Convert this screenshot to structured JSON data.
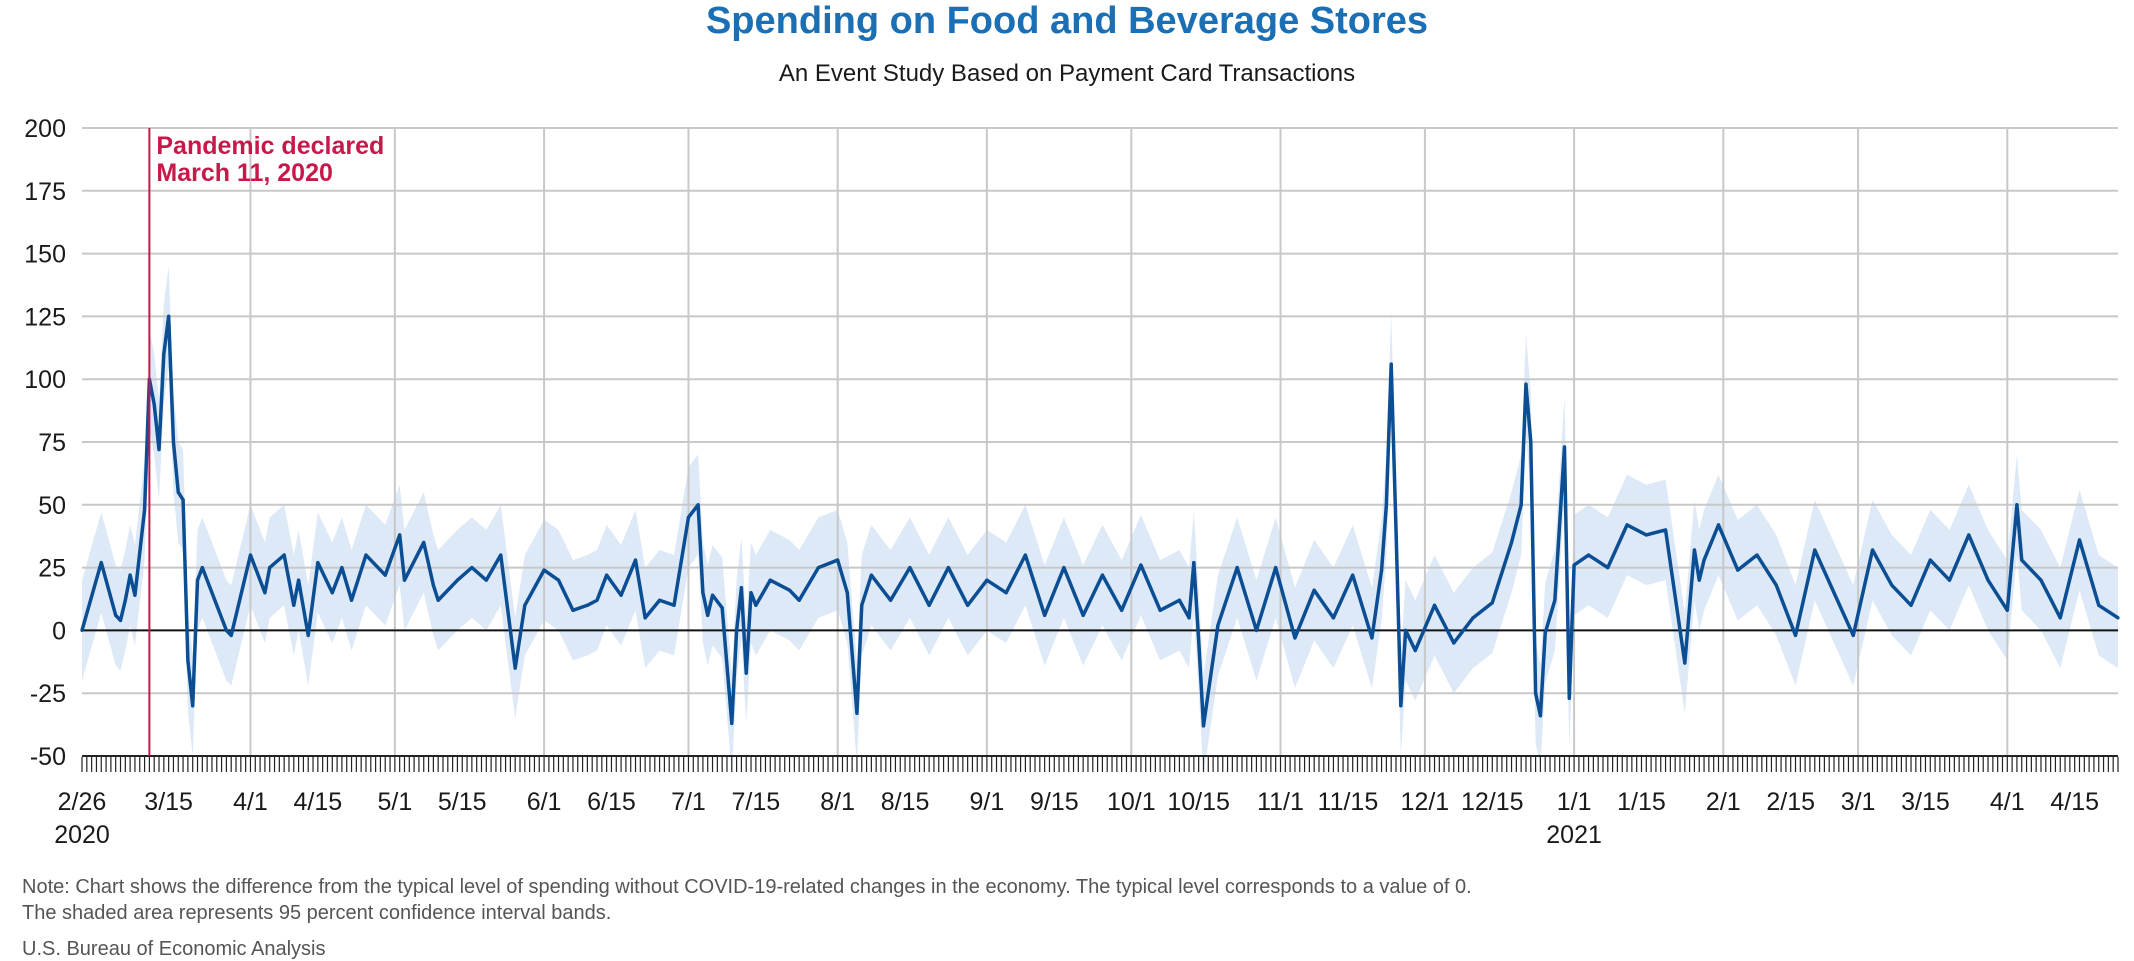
{
  "page": {
    "title": "Spending on Food and Beverage Stores",
    "subtitle": "An Event Study Based on Payment Card Transactions",
    "note_line1": "Note: Chart shows the difference from the typical level of spending without COVID-19-related changes in the economy. The typical level corresponds to a value of 0.",
    "note_line2": "The shaded area represents 95 percent confidence interval bands.",
    "source": "U.S. Bureau of Economic Analysis"
  },
  "colors": {
    "title": "#1a6fb5",
    "line": "#0b4e94",
    "band": "#dde9f7",
    "event": "#c8184a",
    "grid": "#c8c8c8"
  },
  "chart_data": {
    "type": "line",
    "ylim": [
      -50,
      200
    ],
    "yticks": [
      -50,
      -25,
      0,
      25,
      50,
      75,
      100,
      125,
      150,
      175,
      200
    ],
    "grid": true,
    "xlim": [
      "2020-02-26",
      "2021-04-24"
    ],
    "xtick_labels": [
      {
        "date": "2020-02-26",
        "label": "2/26",
        "sublabel": "2020"
      },
      {
        "date": "2020-03-15",
        "label": "3/15"
      },
      {
        "date": "2020-04-01",
        "label": "4/1"
      },
      {
        "date": "2020-04-15",
        "label": "4/15"
      },
      {
        "date": "2020-05-01",
        "label": "5/1"
      },
      {
        "date": "2020-05-15",
        "label": "5/15"
      },
      {
        "date": "2020-06-01",
        "label": "6/1"
      },
      {
        "date": "2020-06-15",
        "label": "6/15"
      },
      {
        "date": "2020-07-01",
        "label": "7/1"
      },
      {
        "date": "2020-07-15",
        "label": "7/15"
      },
      {
        "date": "2020-08-01",
        "label": "8/1"
      },
      {
        "date": "2020-08-15",
        "label": "8/15"
      },
      {
        "date": "2020-09-01",
        "label": "9/1"
      },
      {
        "date": "2020-09-15",
        "label": "9/15"
      },
      {
        "date": "2020-10-01",
        "label": "10/1"
      },
      {
        "date": "2020-10-15",
        "label": "10/15"
      },
      {
        "date": "2020-11-01",
        "label": "11/1"
      },
      {
        "date": "2020-11-15",
        "label": "11/15"
      },
      {
        "date": "2020-12-01",
        "label": "12/1"
      },
      {
        "date": "2020-12-15",
        "label": "12/15"
      },
      {
        "date": "2021-01-01",
        "label": "1/1",
        "sublabel": "2021"
      },
      {
        "date": "2021-01-15",
        "label": "1/15"
      },
      {
        "date": "2021-02-01",
        "label": "2/1"
      },
      {
        "date": "2021-02-15",
        "label": "2/15"
      },
      {
        "date": "2021-03-01",
        "label": "3/1"
      },
      {
        "date": "2021-03-15",
        "label": "3/15"
      },
      {
        "date": "2021-04-01",
        "label": "4/1"
      },
      {
        "date": "2021-04-15",
        "label": "4/15"
      }
    ],
    "event": {
      "date": "2020-03-11",
      "label_line1": "Pandemic declared",
      "label_line2": "March 11, 2020"
    },
    "band_halfwidth": 20,
    "series": [
      {
        "x": [
          "2020-02-26",
          "2020-03-01",
          "2020-03-04",
          "2020-03-05",
          "2020-03-06",
          "2020-03-07",
          "2020-03-08",
          "2020-03-10",
          "2020-03-11",
          "2020-03-12",
          "2020-03-13",
          "2020-03-14",
          "2020-03-15",
          "2020-03-16",
          "2020-03-17",
          "2020-03-18",
          "2020-03-19",
          "2020-03-20",
          "2020-03-21",
          "2020-03-22",
          "2020-03-25",
          "2020-03-27",
          "2020-03-28",
          "2020-04-01",
          "2020-04-04",
          "2020-04-05",
          "2020-04-08",
          "2020-04-10",
          "2020-04-11",
          "2020-04-13",
          "2020-04-15",
          "2020-04-18",
          "2020-04-20",
          "2020-04-22",
          "2020-04-25",
          "2020-04-29",
          "2020-05-02",
          "2020-05-03",
          "2020-05-07",
          "2020-05-09",
          "2020-05-10",
          "2020-05-14",
          "2020-05-17",
          "2020-05-20",
          "2020-05-23",
          "2020-05-24",
          "2020-05-26",
          "2020-05-28",
          "2020-06-01",
          "2020-06-04",
          "2020-06-07",
          "2020-06-10",
          "2020-06-12",
          "2020-06-14",
          "2020-06-17",
          "2020-06-20",
          "2020-06-22",
          "2020-06-25",
          "2020-06-28",
          "2020-07-01",
          "2020-07-03",
          "2020-07-04",
          "2020-07-05",
          "2020-07-06",
          "2020-07-08",
          "2020-07-10",
          "2020-07-11",
          "2020-07-12",
          "2020-07-13",
          "2020-07-14",
          "2020-07-15",
          "2020-07-18",
          "2020-07-22",
          "2020-07-24",
          "2020-07-28",
          "2020-08-01",
          "2020-08-03",
          "2020-08-05",
          "2020-08-06",
          "2020-08-08",
          "2020-08-12",
          "2020-08-16",
          "2020-08-20",
          "2020-08-24",
          "2020-08-28",
          "2020-09-01",
          "2020-09-05",
          "2020-09-09",
          "2020-09-13",
          "2020-09-17",
          "2020-09-21",
          "2020-09-25",
          "2020-09-29",
          "2020-10-03",
          "2020-10-07",
          "2020-10-11",
          "2020-10-13",
          "2020-10-14",
          "2020-10-15",
          "2020-10-16",
          "2020-10-19",
          "2020-10-23",
          "2020-10-27",
          "2020-10-31",
          "2020-11-04",
          "2020-11-08",
          "2020-11-12",
          "2020-11-16",
          "2020-11-20",
          "2020-11-22",
          "2020-11-23",
          "2020-11-24",
          "2020-11-25",
          "2020-11-26",
          "2020-11-27",
          "2020-11-29",
          "2020-12-03",
          "2020-12-07",
          "2020-12-11",
          "2020-12-15",
          "2020-12-19",
          "2020-12-21",
          "2020-12-22",
          "2020-12-23",
          "2020-12-24",
          "2020-12-25",
          "2020-12-26",
          "2020-12-28",
          "2020-12-30",
          "2020-12-31",
          "2021-01-01",
          "2021-01-04",
          "2021-01-08",
          "2021-01-12",
          "2021-01-16",
          "2021-01-20",
          "2021-01-24",
          "2021-01-26",
          "2021-01-27",
          "2021-01-28",
          "2021-01-31",
          "2021-02-04",
          "2021-02-08",
          "2021-02-12",
          "2021-02-16",
          "2021-02-20",
          "2021-02-24",
          "2021-02-28",
          "2021-03-04",
          "2021-03-08",
          "2021-03-12",
          "2021-03-16",
          "2021-03-20",
          "2021-03-24",
          "2021-03-28",
          "2021-04-01",
          "2021-04-03",
          "2021-04-04",
          "2021-04-08",
          "2021-04-12",
          "2021-04-16",
          "2021-04-20",
          "2021-04-24"
        ],
        "y": [
          0,
          27,
          6,
          4,
          12,
          22,
          14,
          48,
          100,
          90,
          72,
          110,
          125,
          75,
          55,
          52,
          -12,
          -30,
          20,
          25,
          10,
          0,
          -2,
          30,
          15,
          25,
          30,
          10,
          20,
          -2,
          27,
          15,
          25,
          12,
          30,
          22,
          38,
          20,
          35,
          18,
          12,
          20,
          25,
          20,
          30,
          15,
          -15,
          10,
          24,
          20,
          8,
          10,
          12,
          22,
          14,
          28,
          5,
          12,
          10,
          45,
          50,
          15,
          6,
          14,
          9,
          -37,
          0,
          17,
          -17,
          15,
          10,
          20,
          16,
          12,
          25,
          28,
          15,
          -33,
          10,
          22,
          12,
          25,
          10,
          25,
          10,
          20,
          15,
          30,
          6,
          25,
          6,
          22,
          8,
          26,
          8,
          12,
          5,
          27,
          -4,
          -38,
          2,
          25,
          0,
          25,
          -3,
          16,
          5,
          22,
          -3,
          24,
          50,
          106,
          40,
          -30,
          0,
          -8,
          10,
          -5,
          5,
          11,
          35,
          50,
          98,
          75,
          -25,
          -34,
          -1,
          12,
          73,
          -27,
          26,
          30,
          25,
          42,
          38,
          40,
          -13,
          32,
          20,
          28,
          42,
          24,
          30,
          18,
          -2,
          32,
          15,
          -2,
          32,
          18,
          10,
          28,
          20,
          38,
          20,
          8,
          50,
          28,
          20,
          5,
          36,
          10,
          5
        ]
      }
    ]
  }
}
